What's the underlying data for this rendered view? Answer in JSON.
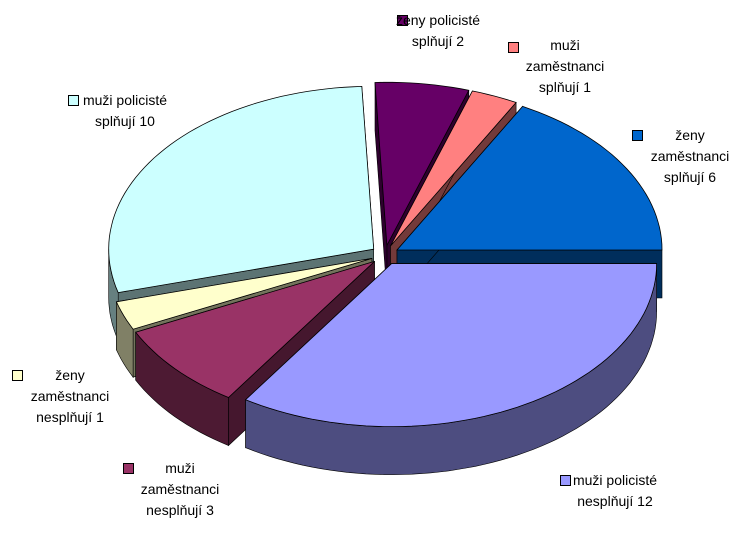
{
  "chart_data": {
    "type": "pie",
    "categories": [
      "ženy policisté splňují",
      "muži zaměstnanci splňují",
      "ženy zaměstnanci splňují",
      "muži policisté nesplňují",
      "muži zaměstnanci nesplňují",
      "ženy zaměstnanci nesplňují",
      "muži policisté splňují"
    ],
    "values": [
      2,
      1,
      6,
      12,
      3,
      1,
      10
    ],
    "colors": [
      "#660066",
      "#FF8080",
      "#0066CC",
      "#9999FF",
      "#993366",
      "#FFFFCC",
      "#CCFFFF"
    ],
    "legend": false
  }
}
